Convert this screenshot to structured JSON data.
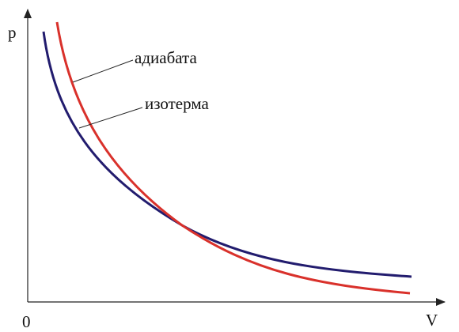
{
  "axes": {
    "y_label": "p",
    "x_label": "V",
    "origin_label": "0"
  },
  "curves": [
    {
      "label": "адиабата"
    },
    {
      "label": "изотерма"
    }
  ]
}
